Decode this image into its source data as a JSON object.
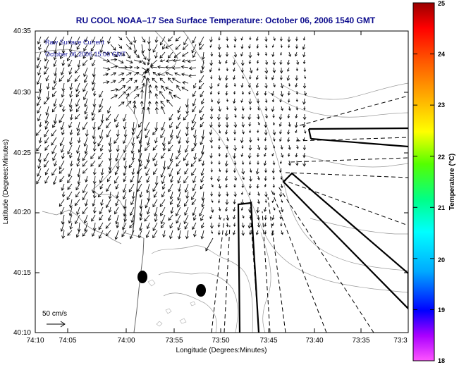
{
  "title": "RU COOL  NOAA–17  Sea Surface Temperature:  October 06, 2006 1540 GMT",
  "legend": {
    "line1": "Raw Surface Current",
    "line2": "October 06,2006 15:00 GMT",
    "scale_label": "50 cm/s"
  },
  "axes": {
    "xlabel": "Longitude (Degrees:Minutes)",
    "ylabel": "Latitude (Degrees:Minutes)",
    "xticks": [
      "74:10",
      "74:05",
      "74:00",
      "73:55",
      "73:50",
      "73:45",
      "73:40",
      "73:35",
      "73:3"
    ],
    "yticks": [
      "40:35",
      "40:30",
      "40:25",
      "40:20",
      "40:15",
      "40:10"
    ]
  },
  "colorbar": {
    "label": "Temperature (°C)",
    "ticks": [
      "25",
      "24",
      "23",
      "22",
      "21",
      "20",
      "19",
      "18"
    ],
    "range": [
      18,
      25
    ],
    "colors": [
      "#ff55ff",
      "#aa00ff",
      "#0000ff",
      "#00aaff",
      "#00ffff",
      "#00ff88",
      "#55ff00",
      "#ffff00",
      "#ffaa00",
      "#ff5500",
      "#ff0000",
      "#990000"
    ]
  },
  "colors": {
    "title": "#0a0a8c",
    "legend_text": "#1a1a9c",
    "coast": "#888888",
    "vectors": "#000000"
  }
}
